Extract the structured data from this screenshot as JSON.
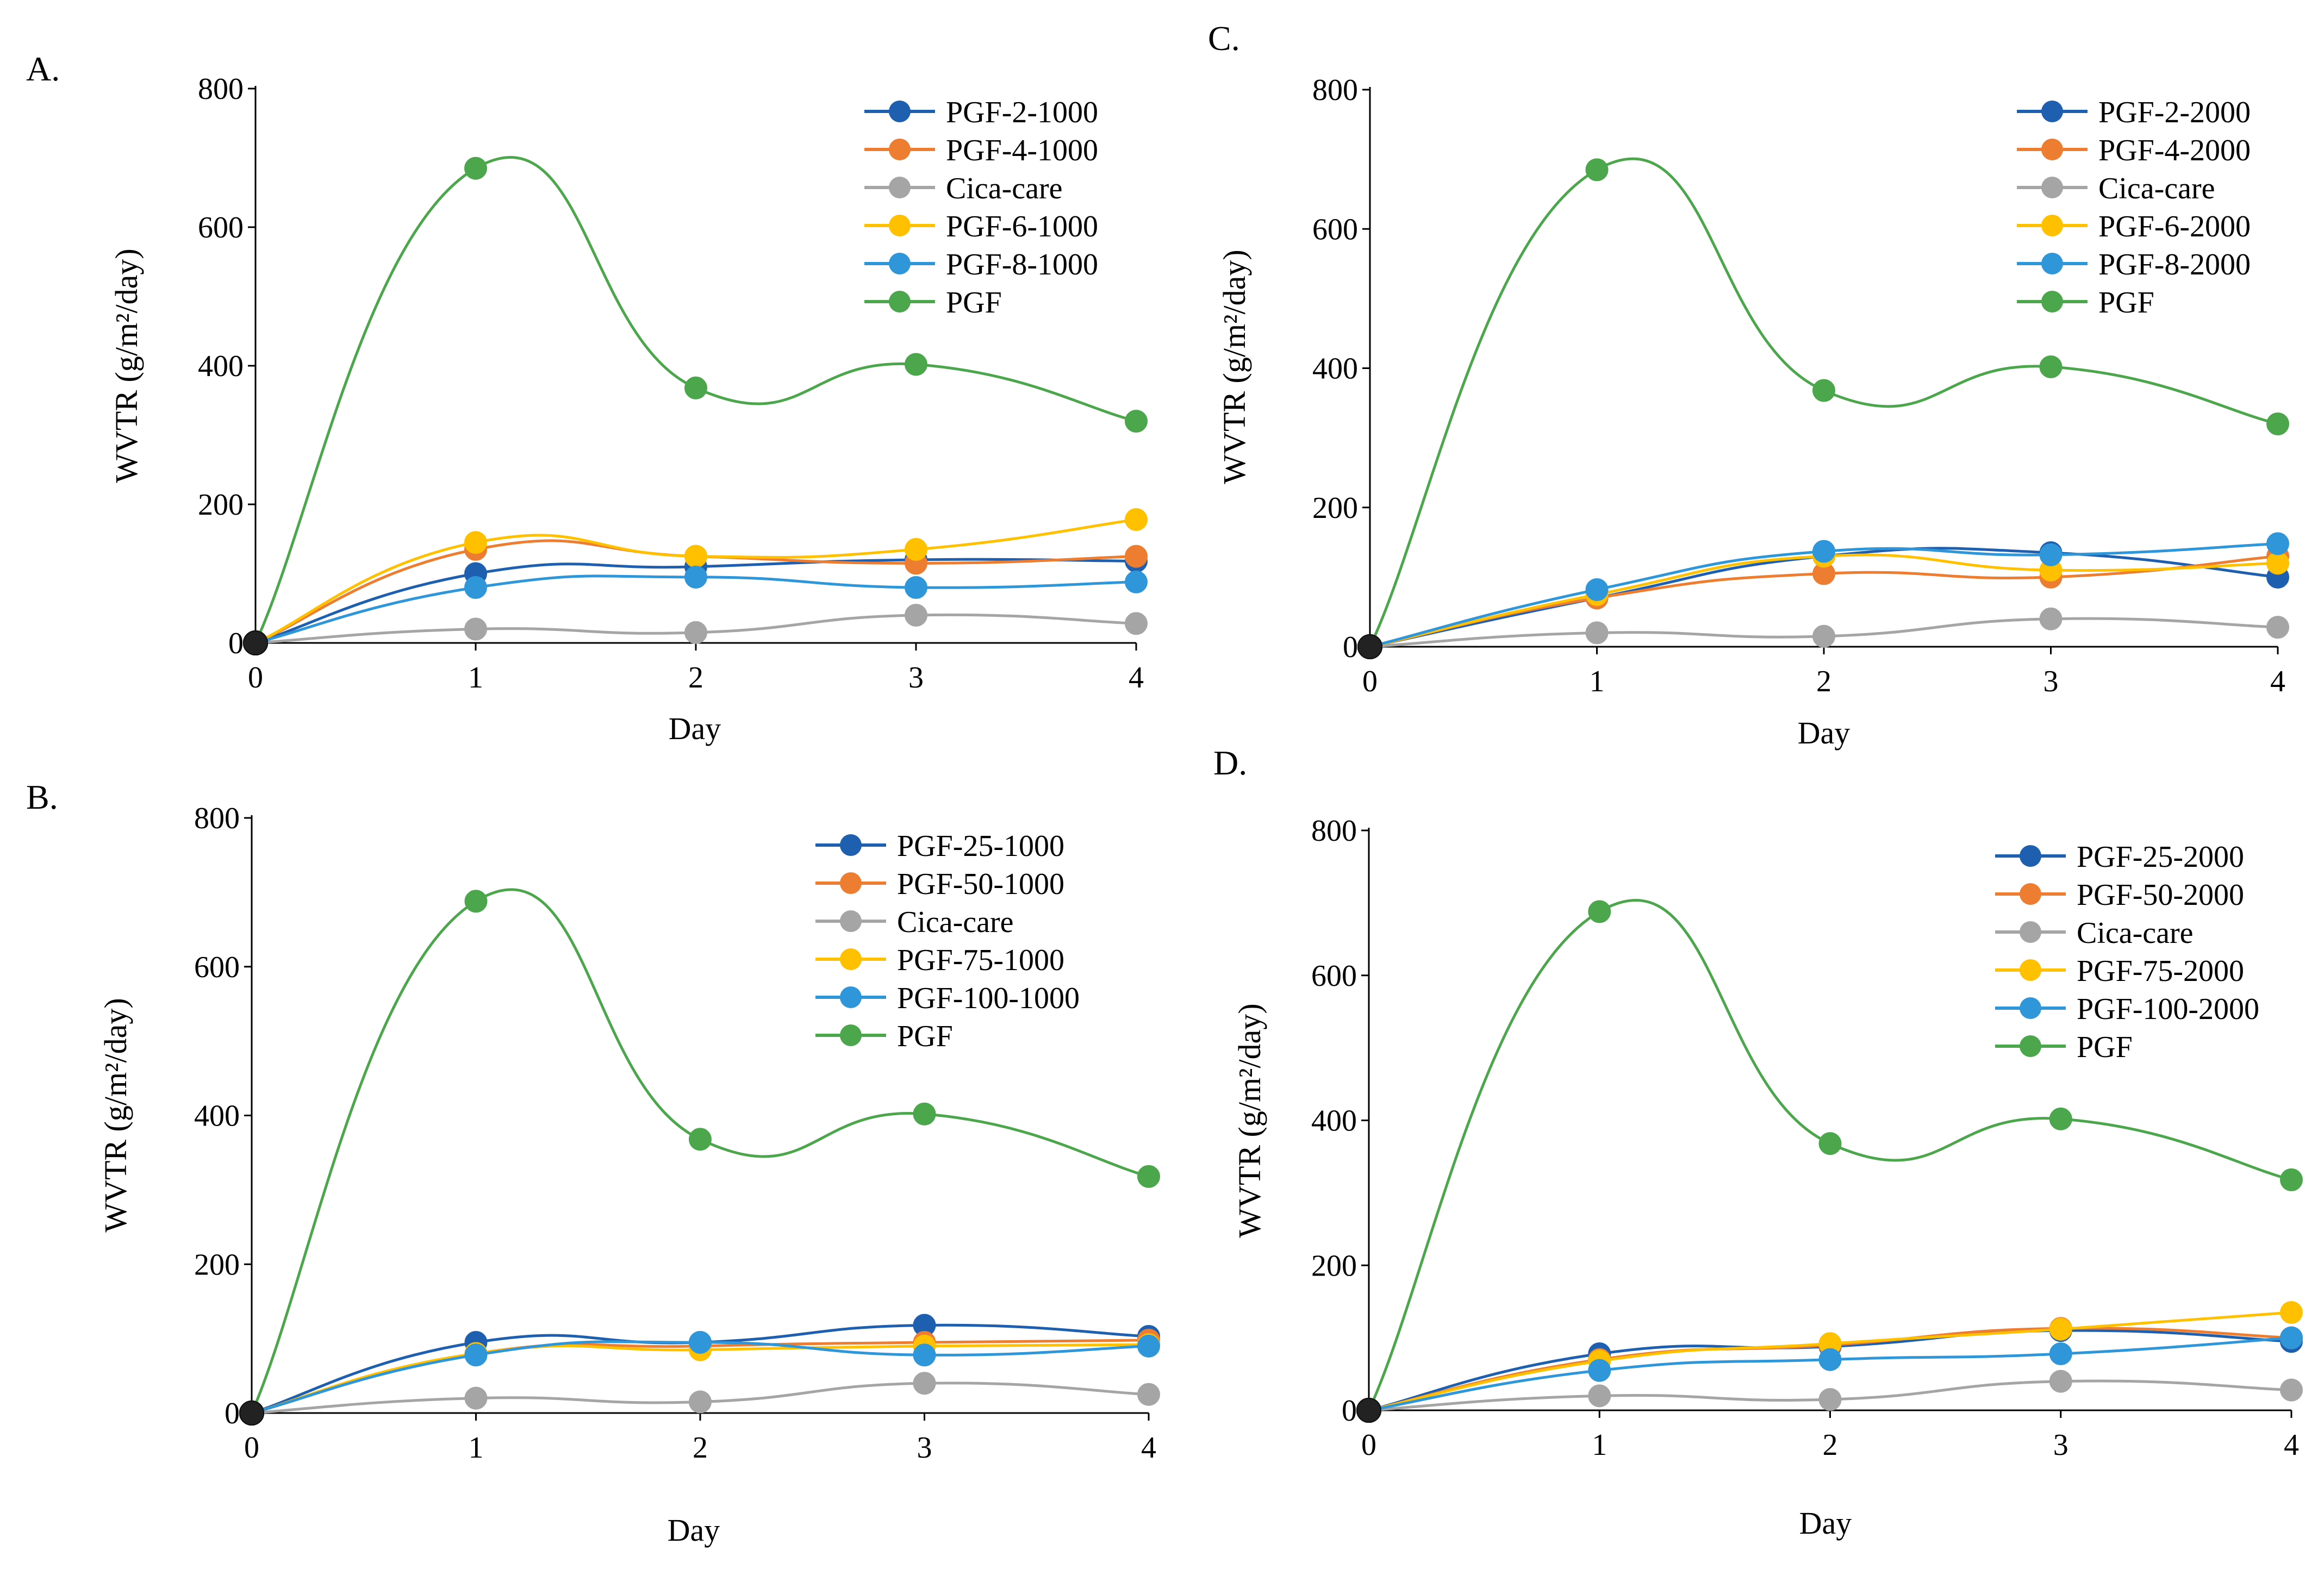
{
  "chart_data": [
    {
      "panel_label": "A.",
      "type": "line",
      "xlabel": "Day",
      "ylabel": "WVTR (g/m²/day)",
      "x": [
        0,
        1,
        2,
        3,
        4
      ],
      "xticks": [
        "0",
        "1",
        "2",
        "3",
        "4"
      ],
      "ylim": [
        0,
        800
      ],
      "yticks": [
        "0",
        "200",
        "400",
        "600",
        "800"
      ],
      "legend_position": "top-right",
      "series": [
        {
          "name": "PGF-2-1000",
          "color": "#1F5FAF",
          "values": [
            0,
            100,
            110,
            120,
            118
          ]
        },
        {
          "name": "PGF-4-1000",
          "color": "#ED7D31",
          "values": [
            0,
            135,
            125,
            115,
            125
          ]
        },
        {
          "name": "Cica-care",
          "color": "#A5A5A5",
          "values": [
            0,
            20,
            15,
            40,
            28
          ]
        },
        {
          "name": "PGF-6-1000",
          "color": "#FFC000",
          "values": [
            0,
            145,
            125,
            135,
            178
          ]
        },
        {
          "name": "PGF-8-1000",
          "color": "#2F97D9",
          "values": [
            0,
            80,
            95,
            80,
            88
          ]
        },
        {
          "name": "PGF",
          "color": "#4CA64C",
          "values": [
            0,
            685,
            368,
            402,
            320
          ]
        }
      ]
    },
    {
      "panel_label": "B.",
      "type": "line",
      "xlabel": "Day",
      "ylabel": "WVTR (g/m²/day)",
      "x": [
        0,
        1,
        2,
        3,
        4
      ],
      "xticks": [
        "0",
        "1",
        "2",
        "3",
        "4"
      ],
      "ylim": [
        0,
        800
      ],
      "yticks": [
        "0",
        "200",
        "400",
        "600",
        "800"
      ],
      "legend_position": "top-right",
      "series": [
        {
          "name": "PGF-25-1000",
          "color": "#1F5FAF",
          "values": [
            0,
            95,
            95,
            118,
            103
          ]
        },
        {
          "name": "PGF-50-1000",
          "color": "#ED7D31",
          "values": [
            0,
            80,
            90,
            95,
            98
          ]
        },
        {
          "name": "Cica-care",
          "color": "#A5A5A5",
          "values": [
            0,
            20,
            15,
            40,
            25
          ]
        },
        {
          "name": "PGF-75-1000",
          "color": "#FFC000",
          "values": [
            0,
            80,
            85,
            90,
            92
          ]
        },
        {
          "name": "PGF-100-1000",
          "color": "#2F97D9",
          "values": [
            0,
            78,
            95,
            78,
            90
          ]
        },
        {
          "name": "PGF",
          "color": "#4CA64C",
          "values": [
            0,
            688,
            368,
            402,
            318
          ]
        }
      ]
    },
    {
      "panel_label": "C.",
      "type": "line",
      "xlabel": "Day",
      "ylabel": "WVTR (g/m²/day)",
      "x": [
        0,
        1,
        2,
        3,
        4
      ],
      "xticks": [
        "0",
        "1",
        "2",
        "3",
        "4"
      ],
      "ylim": [
        0,
        800
      ],
      "yticks": [
        "0",
        "200",
        "400",
        "600",
        "800"
      ],
      "legend_position": "top-right",
      "series": [
        {
          "name": "PGF-2-2000",
          "color": "#1F5FAF",
          "values": [
            0,
            70,
            130,
            135,
            100
          ]
        },
        {
          "name": "PGF-4-2000",
          "color": "#ED7D31",
          "values": [
            0,
            70,
            105,
            100,
            130
          ]
        },
        {
          "name": "Cica-care",
          "color": "#A5A5A5",
          "values": [
            0,
            20,
            15,
            40,
            28
          ]
        },
        {
          "name": "PGF-6-2000",
          "color": "#FFC000",
          "values": [
            0,
            75,
            130,
            110,
            120
          ]
        },
        {
          "name": "PGF-8-2000",
          "color": "#2F97D9",
          "values": [
            0,
            82,
            137,
            132,
            148
          ]
        },
        {
          "name": "PGF",
          "color": "#4CA64C",
          "values": [
            0,
            685,
            368,
            402,
            320
          ]
        }
      ]
    },
    {
      "panel_label": "D.",
      "type": "line",
      "xlabel": "Day",
      "ylabel": "WVTR (g/m²/day)",
      "x": [
        0,
        1,
        2,
        3,
        4
      ],
      "xticks": [
        "0",
        "1",
        "2",
        "3",
        "4"
      ],
      "ylim": [
        0,
        800
      ],
      "yticks": [
        "0",
        "200",
        "400",
        "600",
        "800"
      ],
      "legend_position": "top-right",
      "series": [
        {
          "name": "PGF-25-2000",
          "color": "#1F5FAF",
          "values": [
            0,
            78,
            88,
            110,
            95
          ]
        },
        {
          "name": "PGF-50-2000",
          "color": "#ED7D31",
          "values": [
            0,
            70,
            90,
            113,
            100
          ]
        },
        {
          "name": "Cica-care",
          "color": "#A5A5A5",
          "values": [
            0,
            20,
            15,
            40,
            28
          ]
        },
        {
          "name": "PGF-75-2000",
          "color": "#FFC000",
          "values": [
            0,
            68,
            92,
            112,
            135
          ]
        },
        {
          "name": "PGF-100-2000",
          "color": "#2F97D9",
          "values": [
            0,
            55,
            70,
            78,
            100
          ]
        },
        {
          "name": "PGF",
          "color": "#4CA64C",
          "values": [
            0,
            688,
            368,
            402,
            318
          ]
        }
      ]
    }
  ]
}
